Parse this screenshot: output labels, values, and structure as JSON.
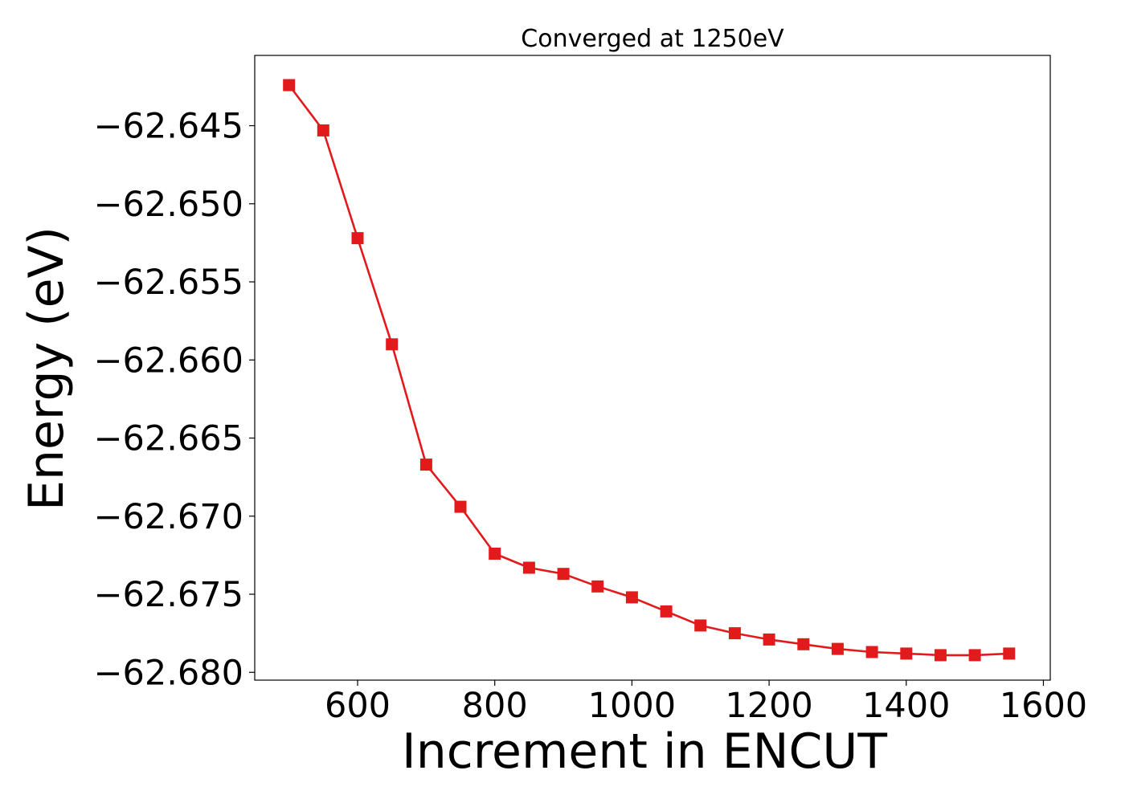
{
  "chart_data": {
    "type": "line",
    "title": "Converged at 1250eV",
    "xlabel": "Increment in ENCUT",
    "ylabel": "Energy (eV)",
    "xlim": [
      450,
      1610
    ],
    "ylim": [
      -62.6805,
      -62.6405
    ],
    "x_ticks": [
      600,
      800,
      1000,
      1200,
      1400,
      1600
    ],
    "x_tick_labels": [
      "600",
      "800",
      "1000",
      "1200",
      "1400",
      "1600"
    ],
    "y_ticks": [
      -62.645,
      -62.65,
      -62.655,
      -62.66,
      -62.665,
      -62.67,
      -62.675,
      -62.68
    ],
    "y_tick_labels": [
      "−62.645",
      "−62.650",
      "−62.655",
      "−62.660",
      "−62.665",
      "−62.670",
      "−62.675",
      "−62.680"
    ],
    "grid": false,
    "colors": {
      "series": "#e31a1c"
    },
    "series": [
      {
        "marker": "square",
        "x": [
          500,
          550,
          600,
          650,
          700,
          750,
          800,
          850,
          900,
          950,
          1000,
          1050,
          1100,
          1150,
          1200,
          1250,
          1300,
          1350,
          1400,
          1450,
          1500,
          1550
        ],
        "y": [
          -62.6424,
          -62.6453,
          -62.6522,
          -62.659,
          -62.6667,
          -62.6694,
          -62.6724,
          -62.6733,
          -62.6737,
          -62.6745,
          -62.6752,
          -62.6761,
          -62.677,
          -62.6775,
          -62.6779,
          -62.6782,
          -62.6785,
          -62.6787,
          -62.6788,
          -62.6789,
          -62.6789,
          -62.6788
        ]
      }
    ]
  }
}
